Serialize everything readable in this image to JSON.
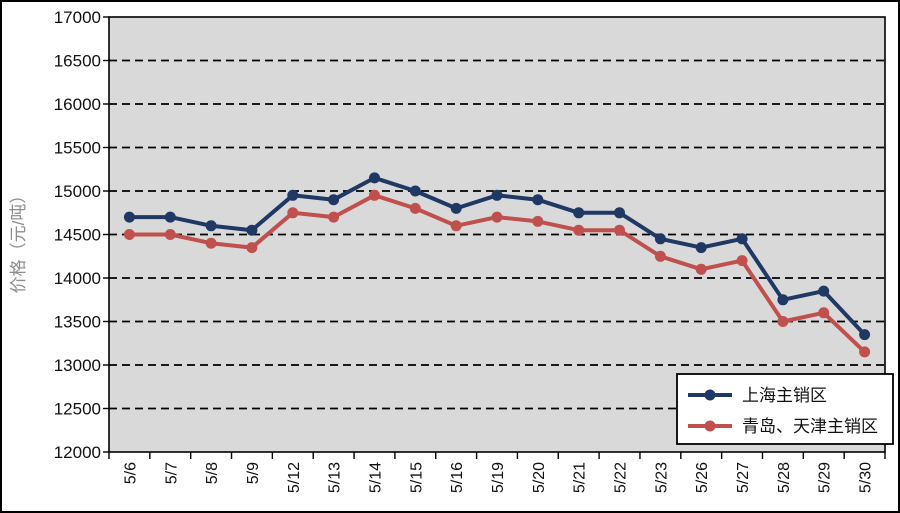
{
  "chart_data": {
    "type": "line",
    "title": "",
    "xlabel": "",
    "ylabel": "价格（元/吨）",
    "categories": [
      "5/6",
      "5/7",
      "5/8",
      "5/9",
      "5/12",
      "5/13",
      "5/14",
      "5/15",
      "5/16",
      "5/19",
      "5/20",
      "5/21",
      "5/22",
      "5/23",
      "5/26",
      "5/27",
      "5/28",
      "5/29",
      "5/30"
    ],
    "series": [
      {
        "name": "上海主销区",
        "color": "#1F3864",
        "marker": "circle",
        "values": [
          14700,
          14700,
          14600,
          14550,
          14950,
          14900,
          15150,
          15000,
          14800,
          14950,
          14900,
          14750,
          14750,
          14450,
          14350,
          14450,
          13750,
          13850,
          13350
        ]
      },
      {
        "name": "青岛、天津主销区",
        "color": "#C0504D",
        "marker": "circle",
        "values": [
          14500,
          14500,
          14400,
          14350,
          14750,
          14700,
          14950,
          14800,
          14600,
          14700,
          14650,
          14550,
          14550,
          14250,
          14100,
          14200,
          13500,
          13600,
          13150
        ]
      }
    ],
    "ylim": [
      12000,
      17000
    ],
    "ytick_step": 500,
    "grid": "horizontal-dashed",
    "gridline_color": "#000000",
    "plot_bg": "#D9D9D9",
    "legend_position": "bottom-right",
    "legend_bg": "#FFFFFF",
    "legend_border": "#000000"
  }
}
